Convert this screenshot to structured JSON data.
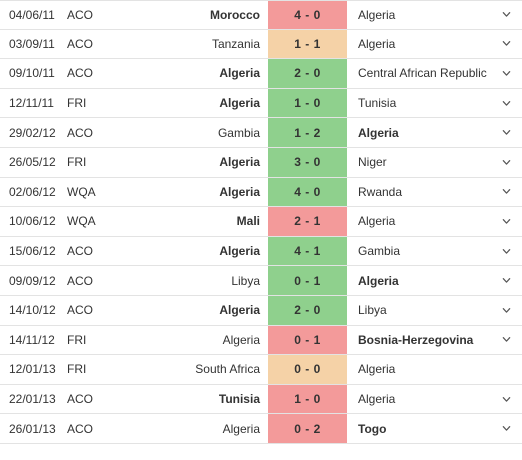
{
  "colors": {
    "win": "#8fd08d",
    "draw": "#f5d2a7",
    "loss": "#f39a9a"
  },
  "matches": [
    {
      "date": "04/06/11",
      "competition": "ACO",
      "home": "Morocco",
      "score": "4 - 0",
      "away": "Algeria",
      "winner": "home",
      "result": "loss",
      "expandable": true
    },
    {
      "date": "03/09/11",
      "competition": "ACO",
      "home": "Tanzania",
      "score": "1 - 1",
      "away": "Algeria",
      "winner": "none",
      "result": "draw",
      "expandable": true
    },
    {
      "date": "09/10/11",
      "competition": "ACO",
      "home": "Algeria",
      "score": "2 - 0",
      "away": "Central African Republic",
      "winner": "home",
      "result": "win",
      "expandable": true
    },
    {
      "date": "12/11/11",
      "competition": "FRI",
      "home": "Algeria",
      "score": "1 - 0",
      "away": "Tunisia",
      "winner": "home",
      "result": "win",
      "expandable": true
    },
    {
      "date": "29/02/12",
      "competition": "ACO",
      "home": "Gambia",
      "score": "1 - 2",
      "away": "Algeria",
      "winner": "away",
      "result": "win",
      "expandable": true
    },
    {
      "date": "26/05/12",
      "competition": "FRI",
      "home": "Algeria",
      "score": "3 - 0",
      "away": "Niger",
      "winner": "home",
      "result": "win",
      "expandable": true
    },
    {
      "date": "02/06/12",
      "competition": "WQA",
      "home": "Algeria",
      "score": "4 - 0",
      "away": "Rwanda",
      "winner": "home",
      "result": "win",
      "expandable": true
    },
    {
      "date": "10/06/12",
      "competition": "WQA",
      "home": "Mali",
      "score": "2 - 1",
      "away": "Algeria",
      "winner": "home",
      "result": "loss",
      "expandable": true
    },
    {
      "date": "15/06/12",
      "competition": "ACO",
      "home": "Algeria",
      "score": "4 - 1",
      "away": "Gambia",
      "winner": "home",
      "result": "win",
      "expandable": true
    },
    {
      "date": "09/09/12",
      "competition": "ACO",
      "home": "Libya",
      "score": "0 - 1",
      "away": "Algeria",
      "winner": "away",
      "result": "win",
      "expandable": true
    },
    {
      "date": "14/10/12",
      "competition": "ACO",
      "home": "Algeria",
      "score": "2 - 0",
      "away": "Libya",
      "winner": "home",
      "result": "win",
      "expandable": true
    },
    {
      "date": "14/11/12",
      "competition": "FRI",
      "home": "Algeria",
      "score": "0 - 1",
      "away": "Bosnia-Herzegovina",
      "winner": "away",
      "result": "loss",
      "expandable": true
    },
    {
      "date": "12/01/13",
      "competition": "FRI",
      "home": "South Africa",
      "score": "0 - 0",
      "away": "Algeria",
      "winner": "none",
      "result": "draw",
      "expandable": false
    },
    {
      "date": "22/01/13",
      "competition": "ACO",
      "home": "Tunisia",
      "score": "1 - 0",
      "away": "Algeria",
      "winner": "home",
      "result": "loss",
      "expandable": true
    },
    {
      "date": "26/01/13",
      "competition": "ACO",
      "home": "Algeria",
      "score": "0 - 2",
      "away": "Togo",
      "winner": "away",
      "result": "loss",
      "expandable": true
    }
  ]
}
